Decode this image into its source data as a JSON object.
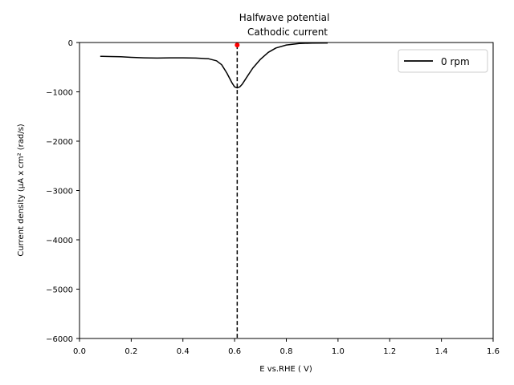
{
  "chart_data": {
    "type": "line",
    "title_lines": [
      "Halfwave potential",
      "Cathodic current"
    ],
    "xlabel": "E vs.RHE ( V)",
    "ylabel": "Current density (μA x  cm² (rad/s)",
    "xlim": [
      0.0,
      1.6
    ],
    "ylim": [
      -6000,
      0
    ],
    "xticks": [
      0.0,
      0.2,
      0.4,
      0.6,
      0.8,
      1.0,
      1.2,
      1.4,
      1.6
    ],
    "xtick_labels": [
      "0.0",
      "0.2",
      "0.4",
      "0.6",
      "0.8",
      "1.0",
      "1.2",
      "1.4",
      "1.6"
    ],
    "yticks": [
      0,
      -1000,
      -2000,
      -3000,
      -4000,
      -5000,
      -6000
    ],
    "ytick_labels": [
      "0",
      "−1000",
      "−2000",
      "−3000",
      "−4000",
      "−5000",
      "−6000"
    ],
    "grid": false,
    "legend_position": "top-right",
    "series": [
      {
        "name": "0 rpm",
        "color": "#000000",
        "x": [
          0.08,
          0.12,
          0.16,
          0.2,
          0.25,
          0.3,
          0.35,
          0.4,
          0.45,
          0.5,
          0.53,
          0.55,
          0.57,
          0.59,
          0.6,
          0.61,
          0.62,
          0.63,
          0.65,
          0.67,
          0.7,
          0.73,
          0.76,
          0.8,
          0.85,
          0.9,
          0.96
        ],
        "y": [
          -280,
          -285,
          -290,
          -300,
          -310,
          -315,
          -310,
          -310,
          -315,
          -330,
          -370,
          -450,
          -620,
          -820,
          -900,
          -920,
          -900,
          -840,
          -680,
          -520,
          -340,
          -200,
          -110,
          -50,
          -20,
          -12,
          -10
        ]
      }
    ],
    "vline": {
      "x": 0.61,
      "style": "dashed",
      "color": "#000000"
    },
    "marker": {
      "x": 0.61,
      "y": -50,
      "color": "#ff0000"
    }
  }
}
